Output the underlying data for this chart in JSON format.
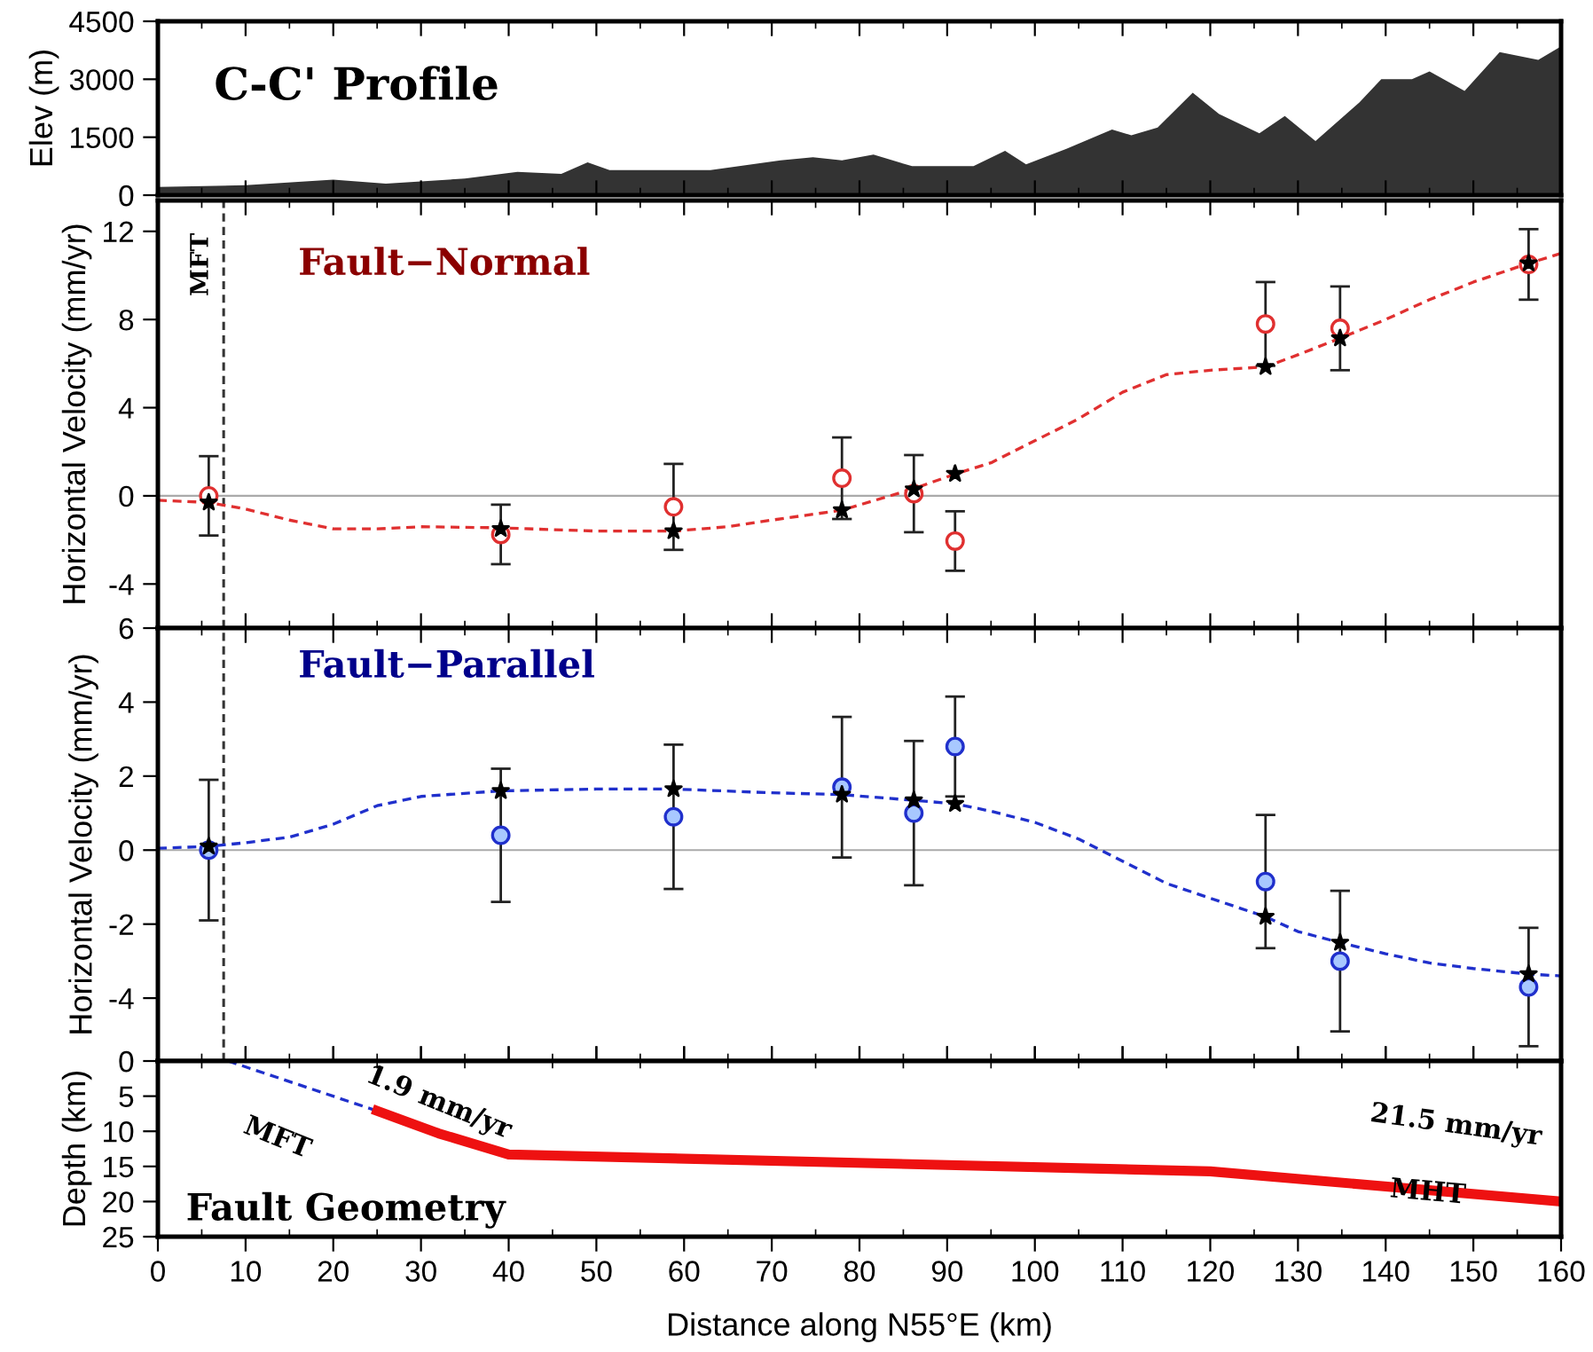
{
  "chart_data": [
    {
      "type": "area",
      "title": "C-C' Profile",
      "ylabel": "Elev (m)",
      "xlim": [
        0,
        160
      ],
      "xticks": [
        0,
        10,
        20,
        30,
        40,
        50,
        60,
        70,
        80,
        90,
        100,
        110,
        120,
        130,
        140,
        150,
        160
      ],
      "ylim": [
        0,
        4500
      ],
      "yticks": [
        0,
        1500,
        3000,
        4500
      ],
      "tick_labels": "y",
      "grid": false,
      "legend": false,
      "series": [
        {
          "color": "#333333",
          "x": [
            0,
            10,
            20,
            26,
            35,
            41,
            46,
            49,
            51.5,
            63,
            71,
            74.7,
            78,
            81.6,
            86,
            93,
            96.6,
            99,
            103.6,
            108.8,
            111,
            114,
            118,
            121,
            125.6,
            128.5,
            132,
            137,
            139.5,
            143,
            145,
            149,
            153,
            157.4,
            160
          ],
          "values": [
            210,
            260,
            400,
            300,
            430,
            600,
            550,
            850,
            650,
            650,
            900,
            980,
            900,
            1050,
            750,
            750,
            1150,
            800,
            1200,
            1700,
            1550,
            1750,
            2650,
            2100,
            1600,
            2050,
            1400,
            2400,
            3000,
            3000,
            3200,
            2700,
            3700,
            3500,
            3850
          ]
        }
      ]
    },
    {
      "type": "scatter",
      "title": "Fault−Normal",
      "ylabel": "Horizontal Velocity (mm/yr)",
      "xlim": [
        0,
        160
      ],
      "xticks": [
        0,
        10,
        20,
        30,
        40,
        50,
        60,
        70,
        80,
        90,
        100,
        110,
        120,
        130,
        140,
        150,
        160
      ],
      "ylim": [
        -6,
        13.4
      ],
      "yticks": [
        -4,
        0,
        4,
        8,
        12
      ],
      "tick_labels": "y",
      "grid": false,
      "legend": false,
      "ref_lines": [
        {
          "axis": "x",
          "value": 7.5,
          "label": "MFT",
          "color": "#333333",
          "line_style": "dashed"
        },
        {
          "axis": "y",
          "value": 0,
          "label": null,
          "color": "#aaaaaa",
          "line_style": "solid"
        }
      ],
      "series": [
        {
          "type": "line",
          "color": "#e03030",
          "marker": "none",
          "line_style": "dashed",
          "x": [
            0,
            5.8,
            10,
            15,
            20,
            25,
            30,
            39,
            50,
            58.8,
            65,
            70,
            78,
            86,
            91,
            95,
            100,
            105,
            110,
            115,
            120,
            126.3,
            130,
            134.8,
            140,
            145,
            150,
            156.3,
            160
          ],
          "values": [
            -0.2,
            -0.3,
            -0.6,
            -1.1,
            -1.5,
            -1.5,
            -1.4,
            -1.45,
            -1.6,
            -1.6,
            -1.4,
            -1.1,
            -0.65,
            0.3,
            1.0,
            1.5,
            2.5,
            3.5,
            4.7,
            5.5,
            5.7,
            5.85,
            6.4,
            7.15,
            8.0,
            8.9,
            9.7,
            10.55,
            11.0
          ]
        },
        {
          "type": "scatter",
          "color": "#e03030",
          "marker": "circle",
          "x": [
            5.8,
            39.1,
            58.8,
            78.0,
            86.2,
            90.9,
            126.3,
            134.8,
            156.3
          ],
          "values": [
            0.0,
            -1.75,
            -0.5,
            0.8,
            0.1,
            -2.05,
            7.8,
            7.6,
            10.5
          ],
          "errors": [
            1.8,
            1.35,
            1.95,
            1.85,
            1.75,
            1.35,
            1.9,
            1.9,
            1.6
          ]
        },
        {
          "type": "scatter",
          "color": "#000000",
          "marker": "star",
          "x": [
            5.8,
            39.1,
            58.8,
            78.0,
            86.2,
            90.9,
            126.3,
            134.8,
            156.3
          ],
          "values": [
            -0.3,
            -1.5,
            -1.6,
            -0.65,
            0.3,
            1.0,
            5.85,
            7.15,
            10.55
          ]
        }
      ]
    },
    {
      "type": "scatter",
      "title": "Fault−Parallel",
      "ylabel": "Horizontal Velocity (mm/yr)",
      "xlim": [
        0,
        160
      ],
      "xticks": [
        0,
        10,
        20,
        30,
        40,
        50,
        60,
        70,
        80,
        90,
        100,
        110,
        120,
        130,
        140,
        150,
        160
      ],
      "ylim": [
        -5.7,
        6
      ],
      "yticks": [
        -4,
        -2,
        0,
        2,
        4,
        6
      ],
      "tick_labels": "y",
      "grid": false,
      "legend": false,
      "ref_lines": [
        {
          "axis": "x",
          "value": 7.5,
          "label": null,
          "color": "#333333",
          "line_style": "dashed"
        },
        {
          "axis": "y",
          "value": 0,
          "label": null,
          "color": "#aaaaaa",
          "line_style": "solid"
        }
      ],
      "series": [
        {
          "type": "line",
          "color": "#2030cc",
          "marker": "none",
          "line_style": "dashed",
          "x": [
            0,
            5.8,
            10,
            15,
            20,
            25,
            30,
            39,
            50,
            58.8,
            70,
            78,
            86,
            91,
            95,
            100,
            105,
            110,
            115,
            120,
            126.3,
            130,
            134.8,
            140,
            145,
            150,
            156.3,
            160
          ],
          "values": [
            0.05,
            0.1,
            0.2,
            0.35,
            0.7,
            1.2,
            1.45,
            1.6,
            1.65,
            1.65,
            1.55,
            1.5,
            1.35,
            1.25,
            1.05,
            0.75,
            0.3,
            -0.3,
            -0.9,
            -1.3,
            -1.8,
            -2.2,
            -2.5,
            -2.8,
            -3.05,
            -3.2,
            -3.35,
            -3.4
          ]
        },
        {
          "type": "scatter",
          "color": "#2030cc",
          "marker": "circle",
          "x": [
            5.8,
            39.1,
            58.8,
            78.0,
            86.2,
            90.9,
            126.3,
            134.8,
            156.3
          ],
          "values": [
            0.0,
            0.4,
            0.9,
            1.7,
            1.0,
            2.8,
            -0.85,
            -3.0,
            -3.7
          ],
          "errors": [
            1.9,
            1.8,
            1.95,
            1.9,
            1.95,
            1.35,
            1.8,
            1.9,
            1.6
          ]
        },
        {
          "type": "scatter",
          "color": "#000000",
          "marker": "star",
          "x": [
            5.8,
            39.1,
            58.8,
            78.0,
            86.2,
            90.9,
            126.3,
            134.8,
            156.3
          ],
          "values": [
            0.1,
            1.6,
            1.65,
            1.5,
            1.35,
            1.25,
            -1.8,
            -2.5,
            -3.35
          ]
        }
      ]
    },
    {
      "type": "line",
      "title": "Fault Geometry",
      "xlabel": "Distance along N55°E (km)",
      "ylabel": "Depth (km)",
      "xlim": [
        0,
        160
      ],
      "xticks": [
        0,
        10,
        20,
        30,
        40,
        50,
        60,
        70,
        80,
        90,
        100,
        110,
        120,
        130,
        140,
        150,
        160
      ],
      "ylim": [
        25,
        0
      ],
      "yticks": [
        0,
        5,
        10,
        15,
        20,
        25
      ],
      "grid": false,
      "legend": false,
      "annotations": [
        "1.9 mm/yr",
        "MFT",
        "21.5 mm/yr",
        "MHT"
      ],
      "series": [
        {
          "color": "#2030cc",
          "line_style": "dashed",
          "x": [
            8,
            25
          ],
          "values": [
            0,
            7.1
          ]
        },
        {
          "color": "#ee1111",
          "line_style": "solid",
          "x": [
            25,
            32,
            40,
            120,
            160
          ],
          "values": [
            7.1,
            10.3,
            13.3,
            15.7,
            20
          ]
        }
      ]
    }
  ]
}
